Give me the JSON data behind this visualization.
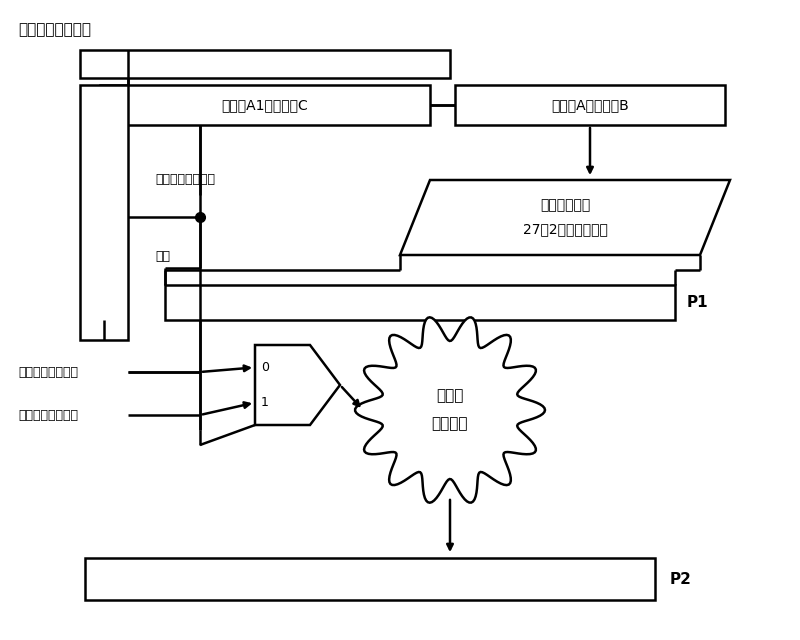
{
  "bg_color": "#ffffff",
  "labels": {
    "top_title": "浮点加法指令指示",
    "box1_text": "操作数A1和操作数C",
    "box2_text": "操作数A和操作数B",
    "para_line1": "波茨编码以及",
    "para_line2": "27：2的乘法压缩树",
    "fp_add_instr": "浮点加法指令指示",
    "enable": "使能",
    "p1_label": "P1",
    "p2_label": "P2",
    "mux_0": "0",
    "mux_1": "1",
    "cloud_line1": "第二拍",
    "cloud_line2": "组合逻辑",
    "fp_mul_operand": "浮点乘加的操作数",
    "fp_add_operand": "浮点加法的操作数"
  },
  "colors": {
    "black": "#000000",
    "white": "#ffffff"
  }
}
